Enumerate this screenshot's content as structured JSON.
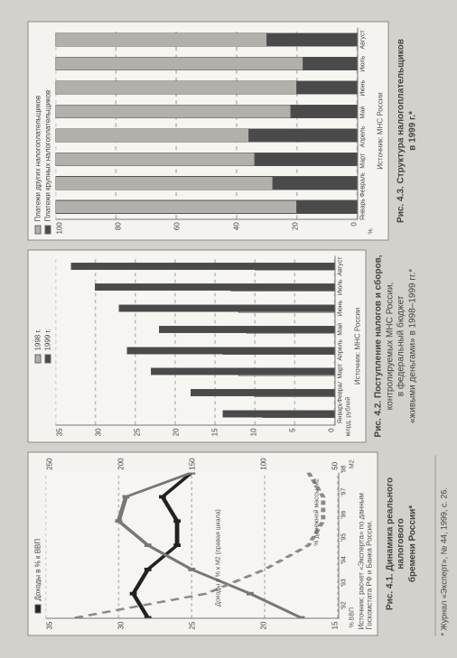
{
  "left_chart": {
    "type": "line",
    "title_lines": [
      "Рис. 4.1. Динамика реального налогового",
      "бремени России*"
    ],
    "series_a_label": "Доходы в % к ВВП",
    "series_b_label": "Доходы в % к M2 (правая шкала)",
    "series_c_label": "% денежной массы М2",
    "y_left_ticks": [
      35,
      30,
      25,
      20,
      15
    ],
    "y_right_ticks": [
      250,
      200,
      150,
      100,
      50
    ],
    "y_left_axis_label": "% ВВП",
    "y_right_axis_label": "М2",
    "xlabels": [
      "'92",
      "'93",
      "'94",
      "'95",
      "'96",
      "'97",
      "'98"
    ],
    "series_a": [
      28,
      29,
      28,
      26,
      26,
      27,
      25
    ],
    "series_b": [
      75,
      110,
      150,
      180,
      200,
      195,
      150
    ],
    "series_c": [
      33,
      24,
      20,
      17,
      16,
      16,
      17
    ],
    "color_a": "#222222",
    "color_b": "#777777",
    "color_c": "#8a8a8a",
    "source": "Источник: расчет «Эксперта» по данным Госкомстата РФ и Банка России."
  },
  "mid_chart": {
    "type": "bar",
    "title_lines": [
      "Рис. 4.2. Поступление налогов и сборов,",
      "контролируемых МНС России,",
      "в федеральный бюджет",
      "«живыми деньгами» в 1998–1999 гг.*"
    ],
    "legend": [
      {
        "label": "1998 г.",
        "color": "#b3b0ac"
      },
      {
        "label": "1999 г.",
        "color": "#4a4a4a"
      }
    ],
    "y_ticks": [
      35,
      30,
      25,
      20,
      15,
      10,
      5,
      0
    ],
    "y_axis_label": "млрд. рублей",
    "xlabels": [
      "Январь",
      "Февраль",
      "Март",
      "Апрель",
      "Май",
      "Июнь",
      "Июль",
      "Август"
    ],
    "v1998": [
      9,
      10,
      12,
      14,
      11,
      12,
      13,
      10
    ],
    "v1999": [
      14,
      18,
      23,
      26,
      22,
      27,
      30,
      33
    ],
    "source": "Источник: МНС России"
  },
  "right_chart": {
    "type": "stacked-bar",
    "title_lines": [
      "Рис. 4.3. Структура налогоплательщиков",
      "в 1999 г.*"
    ],
    "legend": [
      {
        "label": "Платежи других налогоплательщиков",
        "color": "#b3b0ac"
      },
      {
        "label": "Платежи крупных налогоплательщиков",
        "color": "#4a4a4a"
      }
    ],
    "y_ticks": [
      100,
      80,
      60,
      40,
      20,
      0
    ],
    "y_axis_label": "%",
    "xlabels": [
      "Январь",
      "Февраль",
      "Март",
      "Апрель",
      "Май",
      "Июнь",
      "Июль",
      "Август"
    ],
    "big_share": [
      20,
      28,
      34,
      36,
      22,
      20,
      18,
      30
    ],
    "source": "Источник: МНС России"
  },
  "footnote": "* Журнал «Эксперт», № 44, 1999, с. 26."
}
